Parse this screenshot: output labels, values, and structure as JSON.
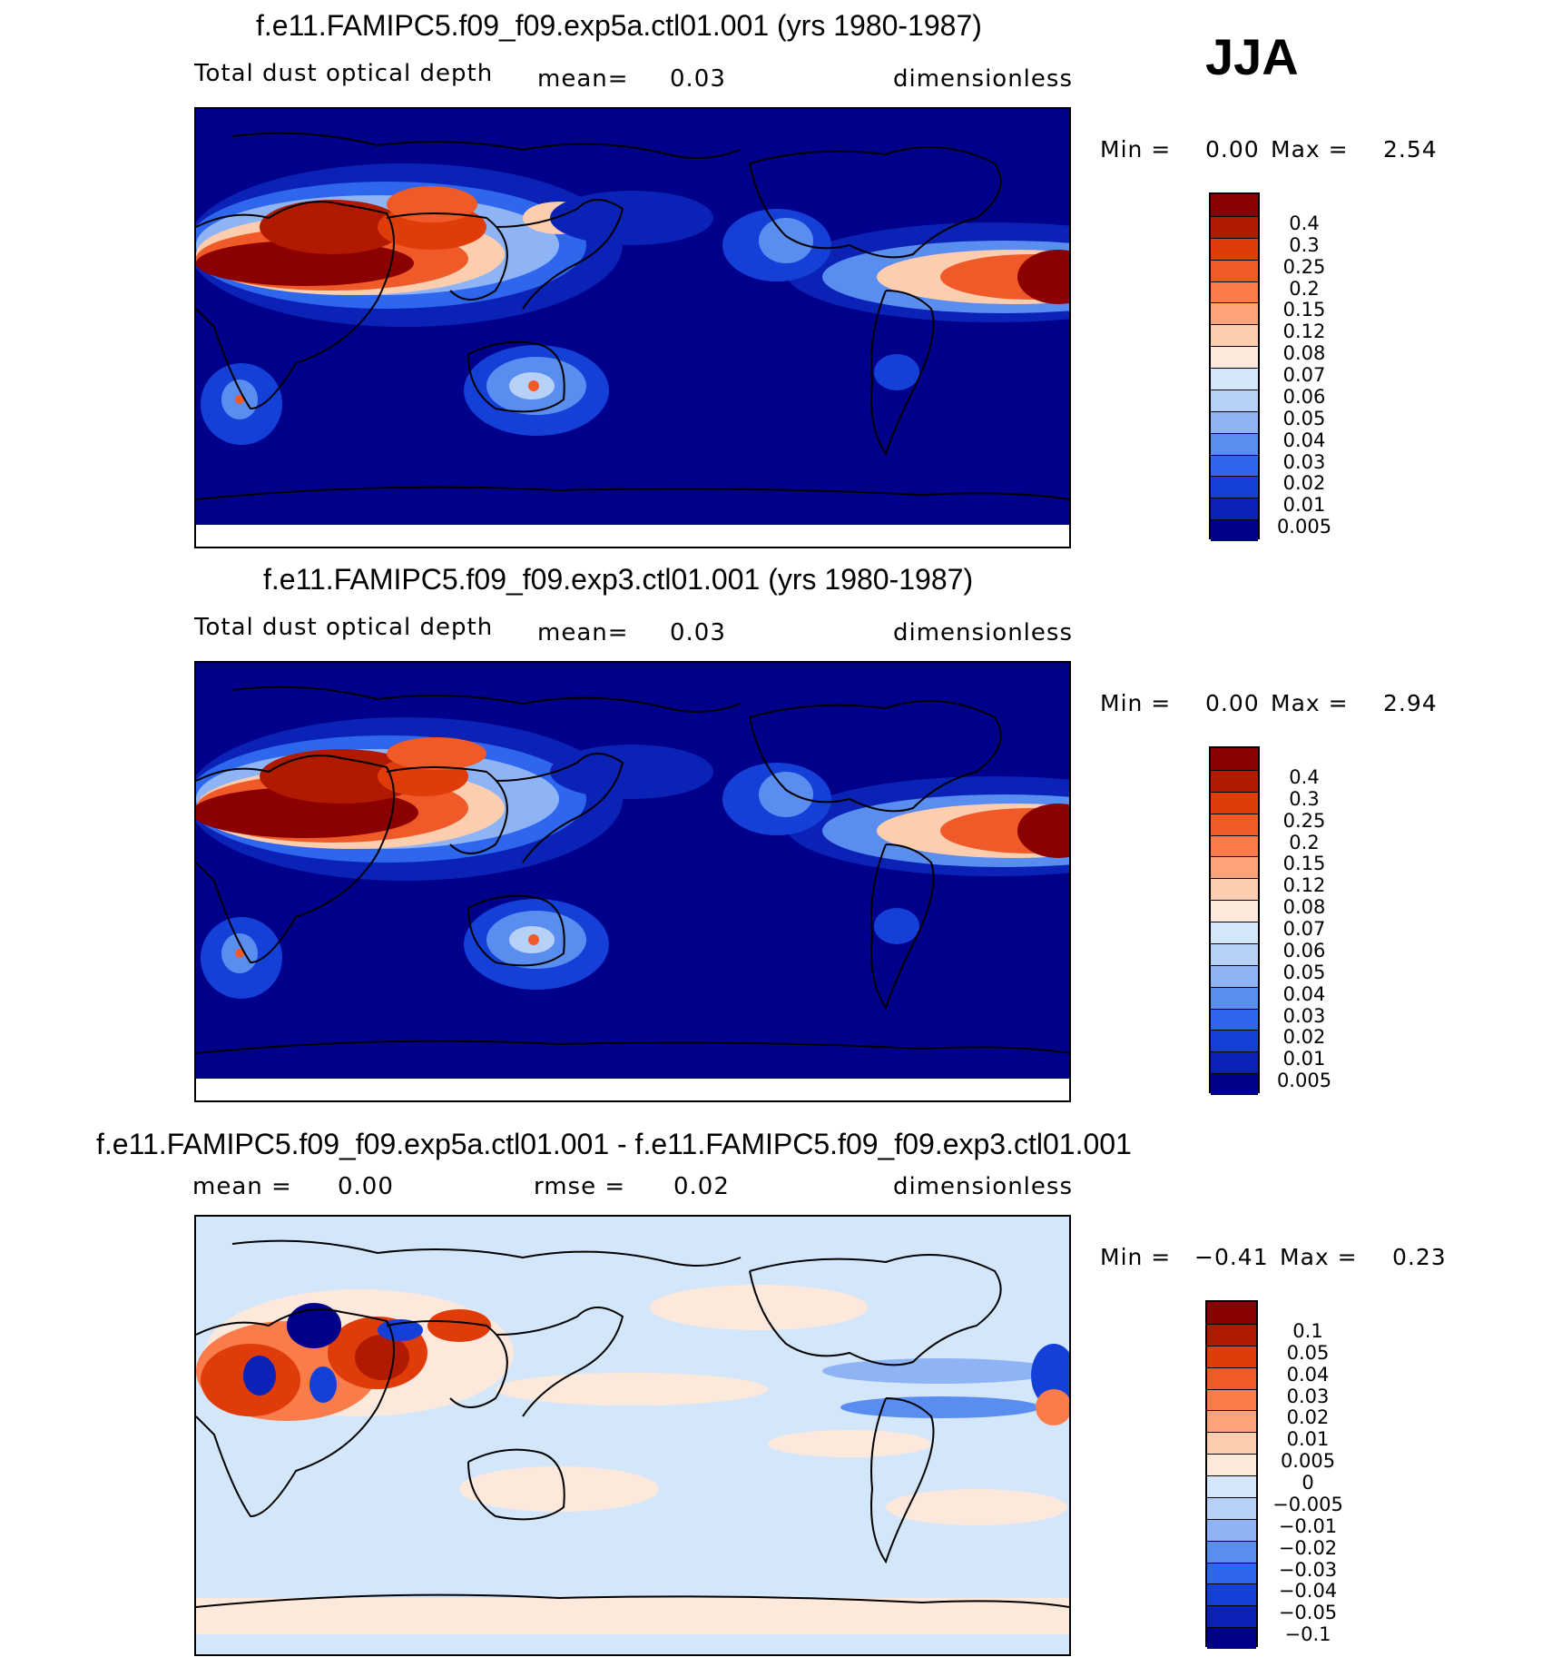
{
  "season": "JJA",
  "panels": [
    {
      "title": "f.e11.FAMIPC5.f09_f09.exp5a.ctl01.001 (yrs 1980-1987)",
      "variable": "Total dust optical depth",
      "stat1_label": "mean=",
      "stat1_value": "0.03",
      "units": "dimensionless",
      "min_label": "Min =",
      "min_value": "0.00",
      "max_label": "Max =",
      "max_value": "2.54",
      "colorbar_labels": [
        "0.4",
        "0.3",
        "0.25",
        "0.2",
        "0.15",
        "0.12",
        "0.08",
        "0.07",
        "0.06",
        "0.05",
        "0.04",
        "0.03",
        "0.02",
        "0.01",
        "0.005"
      ]
    },
    {
      "title": "f.e11.FAMIPC5.f09_f09.exp3.ctl01.001 (yrs 1980-1987)",
      "variable": "Total dust optical depth",
      "stat1_label": "mean=",
      "stat1_value": "0.03",
      "units": "dimensionless",
      "min_label": "Min =",
      "min_value": "0.00",
      "max_label": "Max =",
      "max_value": "2.94",
      "colorbar_labels": [
        "0.4",
        "0.3",
        "0.25",
        "0.2",
        "0.15",
        "0.12",
        "0.08",
        "0.07",
        "0.06",
        "0.05",
        "0.04",
        "0.03",
        "0.02",
        "0.01",
        "0.005"
      ]
    },
    {
      "title": "f.e11.FAMIPC5.f09_f09.exp5a.ctl01.001 - f.e11.FAMIPC5.f09_f09.exp3.ctl01.001",
      "stat1_label": "mean =",
      "stat1_value": "0.00",
      "stat2_label": "rmse =",
      "stat2_value": "0.02",
      "units": "dimensionless",
      "min_label": "Min =",
      "min_value": "−0.41",
      "max_label": "Max =",
      "max_value": "0.23",
      "colorbar_labels": [
        "0.1",
        "0.05",
        "0.04",
        "0.03",
        "0.02",
        "0.01",
        "0.005",
        "0",
        "−0.005",
        "−0.01",
        "−0.02",
        "−0.03",
        "−0.04",
        "−0.05",
        "−0.1"
      ]
    }
  ],
  "colors": {
    "ocean_low": "#00008b",
    "diff_background": "#d4e6fa",
    "abs_scale": [
      "#8b0000",
      "#b01a00",
      "#e03c0a",
      "#f05a28",
      "#f97c4a",
      "#fca37a",
      "#fdcdb0",
      "#fde8dc",
      "#d4e6fa",
      "#b6d0f7",
      "#8fb4f5",
      "#5a8df0",
      "#2f66ee",
      "#1440d8",
      "#0a22b5",
      "#00008b"
    ],
    "diff_scale": [
      "#8b0000",
      "#b01a00",
      "#e03c0a",
      "#f05a28",
      "#f97c4a",
      "#fca37a",
      "#fdcdb0",
      "#fde8dc",
      "#d4e6fa",
      "#b6d0f7",
      "#8fb4f5",
      "#5a8df0",
      "#2f66ee",
      "#1440d8",
      "#0a22b5",
      "#00008b"
    ]
  },
  "chart_data": [
    {
      "type": "heatmap",
      "title": "f.e11.FAMIPC5.f09_f09.exp5a.ctl01.001 (yrs 1980-1987)",
      "mean": 0.03,
      "min": 0.0,
      "max": 2.54,
      "levels": [
        0.005,
        0.01,
        0.02,
        0.03,
        0.04,
        0.05,
        0.06,
        0.07,
        0.08,
        0.12,
        0.15,
        0.2,
        0.25,
        0.3,
        0.4
      ]
    },
    {
      "type": "heatmap",
      "title": "f.e11.FAMIPC5.f09_f09.exp3.ctl01.001 (yrs 1980-1987)",
      "mean": 0.03,
      "min": 0.0,
      "max": 2.94,
      "levels": [
        0.005,
        0.01,
        0.02,
        0.03,
        0.04,
        0.05,
        0.06,
        0.07,
        0.08,
        0.12,
        0.15,
        0.2,
        0.25,
        0.3,
        0.4
      ]
    },
    {
      "type": "heatmap",
      "title": "f.e11.FAMIPC5.f09_f09.exp5a.ctl01.001 - f.e11.FAMIPC5.f09_f09.exp3.ctl01.001",
      "mean": 0.0,
      "rmse": 0.02,
      "min": -0.41,
      "max": 0.23,
      "levels": [
        -0.1,
        -0.05,
        -0.04,
        -0.03,
        -0.02,
        -0.01,
        -0.005,
        0,
        0.005,
        0.01,
        0.02,
        0.03,
        0.04,
        0.05,
        0.1
      ]
    }
  ]
}
